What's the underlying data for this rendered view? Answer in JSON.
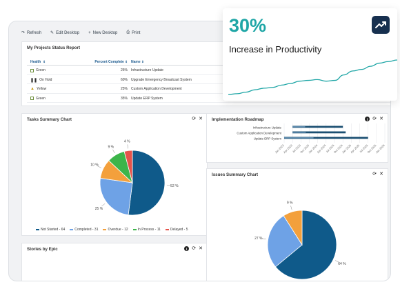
{
  "toolbar": {
    "refresh": "Refresh",
    "edit": "Edit Desktop",
    "new": "New Desktop",
    "print": "Print"
  },
  "report": {
    "title": "My Projects Status Report",
    "headers": {
      "health": "Health",
      "percent": "Percent Complete",
      "name": "Name"
    },
    "rows": [
      {
        "health": "Green",
        "percent": "25%",
        "name": "Infrastructure Update",
        "status": "green"
      },
      {
        "health": "On Hold",
        "percent": "60%",
        "name": "Upgrade Emergency Broadcast System",
        "status": "hold"
      },
      {
        "health": "Yellow",
        "percent": "25%",
        "name": "Custom Application Development",
        "status": "yellow"
      },
      {
        "health": "Green",
        "percent": "35%",
        "name": "Update ERP System",
        "status": "green"
      }
    ]
  },
  "tasks_chart": {
    "title": "Tasks Summary Chart",
    "icons": [
      "refresh-icon",
      "close-icon"
    ]
  },
  "roadmap": {
    "title": "Implementation Roadmap",
    "tasks": [
      "Infrastructure Update",
      "Custom Application Development",
      "Update ERP System"
    ],
    "ticks": [
      "Jan 2023",
      "Apr 2023",
      "Jul 2023",
      "Oct 2023",
      "Jan 2024",
      "Apr 2024",
      "Jul 2024",
      "Oct 2024",
      "Jan 2025",
      "Apr 2025",
      "Jul 2025",
      "Oct 2025",
      "Jan 2026"
    ]
  },
  "issues_chart": {
    "title": "Issues Summary Chart"
  },
  "stories": {
    "title": "Stories by Epic"
  },
  "card": {
    "headline": "30%",
    "subtitle": "Increase in Productivity",
    "accent": "#1fa6a6"
  },
  "chart_data": [
    {
      "type": "pie",
      "title": "Tasks Summary Chart",
      "categories": [
        "Not Started",
        "Completed",
        "Overdue",
        "In Process",
        "Delayed"
      ],
      "counts": [
        64,
        31,
        12,
        11,
        5
      ],
      "slice_labels": [
        "52 %",
        "25 %",
        "10 %",
        "9 %",
        "4 %"
      ],
      "legend_labels": [
        "Not Started - 64",
        "Completed - 31",
        "Overdue - 12",
        "In Process - 11",
        "Delayed - 5"
      ],
      "colors": [
        "#0f5a8a",
        "#6ea2e6",
        "#f3a03c",
        "#3cb54a",
        "#e5534b"
      ],
      "legend": "bottom"
    },
    {
      "type": "pie",
      "title": "Issues Summary Chart",
      "values": [
        64,
        27,
        9
      ],
      "slice_labels": [
        "64 %",
        "27 %",
        "9 %"
      ],
      "colors": [
        "#0f5a8a",
        "#6ea2e6",
        "#f3a03c"
      ]
    },
    {
      "type": "bar",
      "title": "Implementation Roadmap",
      "categories": [
        "Infrastructure Update",
        "Custom Application Development",
        "Update ERP System"
      ],
      "ranges": [
        [
          "2023-04",
          "2024-10"
        ],
        [
          "2023-04",
          "2024-11"
        ],
        [
          "2023-01",
          "2025-07"
        ]
      ],
      "progress_fraction": [
        0.25,
        0.25,
        0.35
      ]
    },
    {
      "type": "line",
      "title": "30%",
      "values": [
        2,
        3,
        5,
        8,
        10,
        11,
        14,
        16,
        19,
        20,
        21,
        19,
        20,
        27,
        32,
        34,
        38,
        42,
        44,
        46
      ],
      "color": "#1fa6a6"
    }
  ]
}
